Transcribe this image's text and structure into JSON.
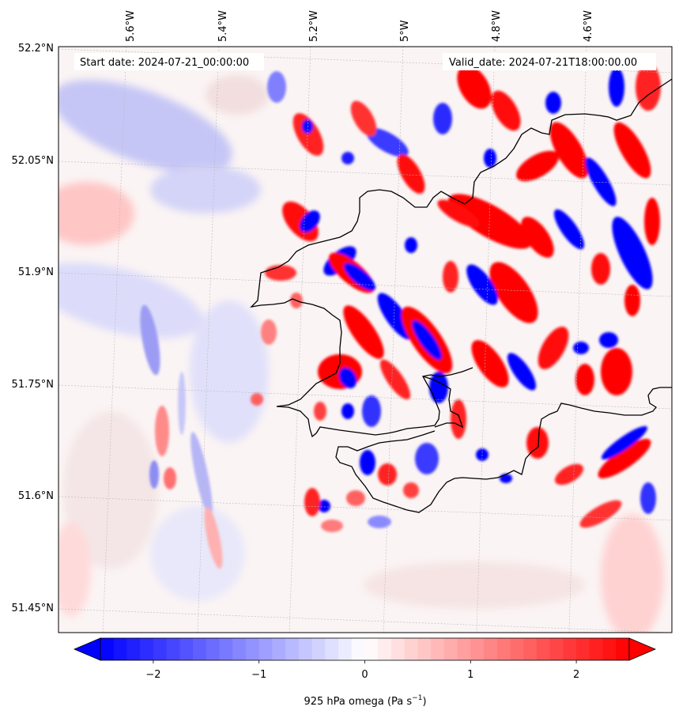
{
  "map": {
    "start_date": "Start date: 2024-07-21_00:00:00",
    "valid_date": "Valid_date: 2024-07-21T18:00:00.00",
    "lon_ticks": [
      "5.6°W",
      "5.4°W",
      "5.2°W",
      "5°W",
      "4.8°W",
      "4.6°W"
    ],
    "lat_ticks": [
      "52.2°N",
      "52.05°N",
      "51.9°N",
      "51.75°N",
      "51.6°N",
      "51.45°N"
    ],
    "variable_label": "925 hPa omega (Pa s",
    "variable_unit_exp": "−1",
    "variable_label_end": ")",
    "colormap": {
      "low": "#0000ff",
      "mid": "#ffffff",
      "high": "#ff0000"
    },
    "colorbar_ticks": [
      "−2",
      "−1",
      "0",
      "1",
      "2"
    ],
    "colorbar_values": [
      -2,
      -1,
      0,
      1,
      2
    ],
    "colorbar_range": [
      -2.5,
      2.5
    ],
    "features": [
      "coastline",
      "gridlines"
    ]
  }
}
